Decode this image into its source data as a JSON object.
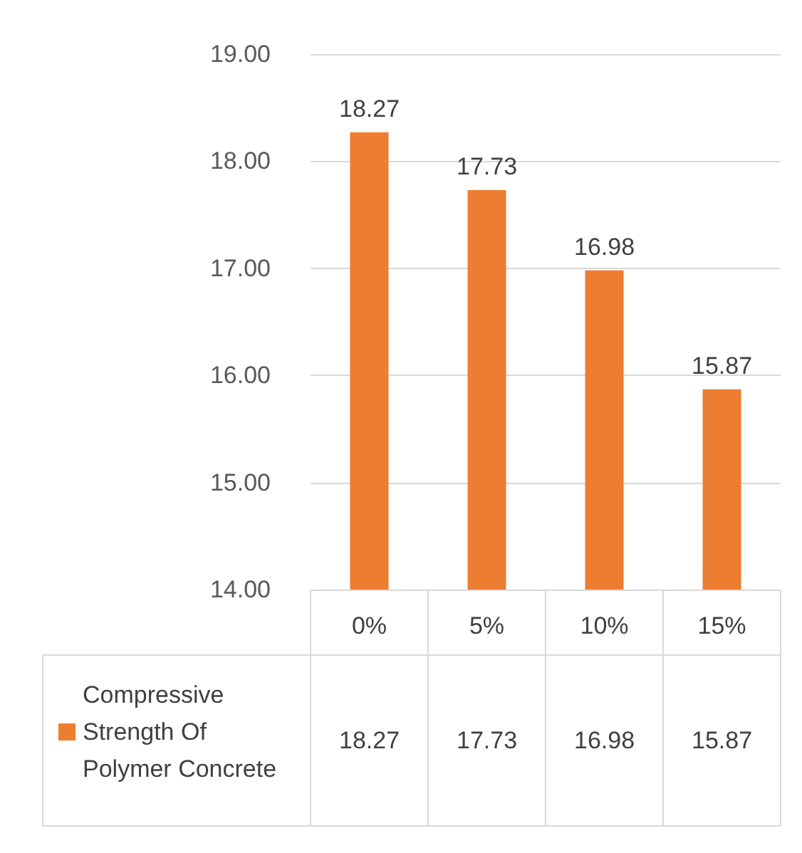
{
  "chart_data": {
    "type": "bar",
    "categories": [
      "0%",
      "5%",
      "10%",
      "15%"
    ],
    "series": [
      {
        "name": "Compressive Strength Of Polymer Concrete",
        "color": "#ed7d31",
        "values": [
          18.27,
          17.73,
          16.98,
          15.87
        ],
        "value_labels": [
          "18.27",
          "17.73",
          "16.98",
          "15.87"
        ]
      }
    ],
    "ylim": [
      14,
      19
    ],
    "yticks": [
      {
        "value": 14,
        "label": "14.00"
      },
      {
        "value": 15,
        "label": "15.00"
      },
      {
        "value": 16,
        "label": "16.00"
      },
      {
        "value": 17,
        "label": "17.00"
      },
      {
        "value": 18,
        "label": "18.00"
      },
      {
        "value": 19,
        "label": "19.00"
      }
    ],
    "grid": "y",
    "data_labels": true,
    "legend": "bottom left"
  }
}
